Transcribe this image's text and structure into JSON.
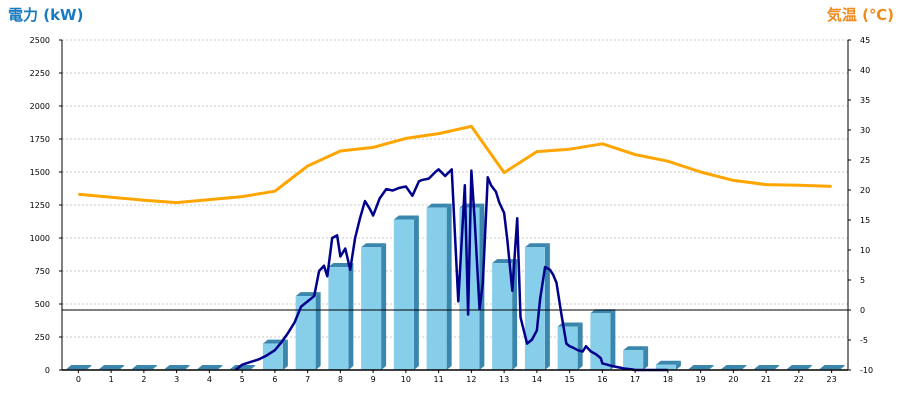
{
  "chart_data": {
    "type": "bar",
    "left_axis": {
      "title": "電力 (kW)",
      "min": 0,
      "max": 2500,
      "ticks": [
        0,
        250,
        500,
        750,
        1000,
        1250,
        1500,
        1750,
        2000,
        2250,
        2500
      ]
    },
    "right_axis": {
      "title": "気温 (℃)",
      "min": -10,
      "max": 45,
      "ticks": [
        -10,
        -5,
        0,
        5,
        10,
        15,
        20,
        25,
        30,
        35,
        40,
        45
      ]
    },
    "categories": [
      "0",
      "1",
      "2",
      "3",
      "4",
      "5",
      "6",
      "7",
      "8",
      "9",
      "10",
      "11",
      "12",
      "13",
      "14",
      "15",
      "16",
      "17",
      "18",
      "19",
      "20",
      "21",
      "22",
      "23"
    ],
    "grid": true,
    "zero_line_temp": 0,
    "series": [
      {
        "kind": "bar",
        "axis": "left",
        "values": [
          0,
          0,
          0,
          0,
          0,
          0,
          200,
          560,
          780,
          930,
          1140,
          1230,
          1230,
          810,
          930,
          330,
          430,
          150,
          40,
          0,
          0,
          0,
          0,
          0
        ]
      },
      {
        "kind": "line",
        "axis": "left",
        "resolution": "5min",
        "x": [
          4.8,
          5.0,
          5.25,
          5.5,
          5.75,
          6.0,
          6.2,
          6.4,
          6.6,
          6.8,
          7.0,
          7.2,
          7.35,
          7.5,
          7.6,
          7.75,
          7.9,
          8.0,
          8.15,
          8.3,
          8.45,
          8.6,
          8.75,
          8.9,
          9.0,
          9.2,
          9.4,
          9.6,
          9.8,
          10.0,
          10.2,
          10.4,
          10.5,
          10.7,
          10.9,
          11.0,
          11.2,
          11.4,
          11.6,
          11.8,
          11.9,
          12.0,
          12.1,
          12.25,
          12.35,
          12.5,
          12.6,
          12.75,
          12.85,
          13.0,
          13.1,
          13.25,
          13.4,
          13.5,
          13.7,
          13.85,
          14.0,
          14.1,
          14.25,
          14.4,
          14.5,
          14.6,
          14.75,
          14.9,
          15.0,
          15.1,
          15.25,
          15.4,
          15.5,
          15.65,
          15.8,
          15.95,
          16.0,
          16.15,
          16.3,
          16.5,
          16.7,
          16.9,
          17.0,
          17.2,
          17.4,
          17.6,
          17.8,
          18.0
        ],
        "y": [
          0,
          40,
          60,
          80,
          110,
          150,
          210,
          280,
          360,
          480,
          520,
          560,
          750,
          790,
          710,
          1000,
          1020,
          860,
          920,
          760,
          1000,
          1150,
          1280,
          1220,
          1170,
          1300,
          1370,
          1360,
          1380,
          1390,
          1320,
          1430,
          1440,
          1450,
          1500,
          1520,
          1470,
          1520,
          520,
          1400,
          420,
          1510,
          1140,
          460,
          660,
          1460,
          1400,
          1350,
          1270,
          1190,
          980,
          600,
          1150,
          400,
          200,
          230,
          300,
          540,
          780,
          760,
          720,
          660,
          420,
          200,
          180,
          170,
          150,
          140,
          180,
          140,
          120,
          90,
          50,
          40,
          30,
          20,
          10,
          5,
          0,
          0,
          0,
          0,
          0,
          0
        ]
      },
      {
        "kind": "line",
        "axis": "right",
        "values": [
          19.3,
          18.8,
          18.3,
          17.9,
          18.4,
          18.9,
          19.8,
          24.0,
          26.5,
          27.1,
          28.6,
          29.4,
          30.6,
          22.9,
          26.4,
          26.8,
          27.7,
          25.9,
          24.8,
          23.0,
          21.6,
          20.9,
          20.8,
          20.6
        ]
      }
    ],
    "colors": {
      "left_axis_title": "#1a7abf",
      "right_axis_title": "#f08a1c",
      "bar_front": "#87ceeb",
      "bar_side": "#3a86ad",
      "bar_top": "#b9e4f5",
      "power_line": "#00008b",
      "temp_line": "#ffa500",
      "grid": "#c8c8c8",
      "zero_line": "#000000"
    }
  }
}
